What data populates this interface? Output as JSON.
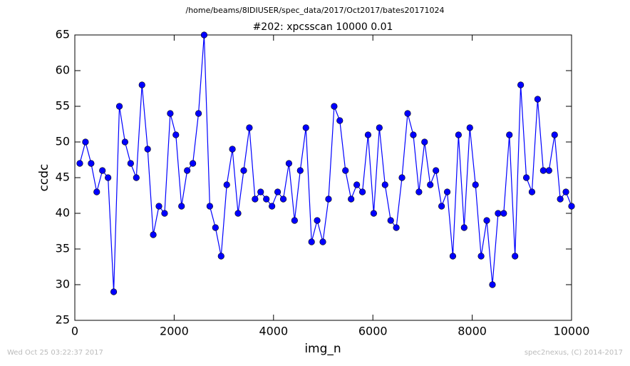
{
  "chart_data": {
    "type": "line",
    "suptitle": "/home/beams/8IDIUSER/spec_data/2017/Oct2017/bates20171024",
    "title": "#202: xpcsscan 10000 0.01",
    "xlabel": "img_n",
    "ylabel": "ccdc",
    "footer_left": "Wed Oct 25 03:22:37 2017",
    "footer_right": "spec2nexus, (C) 2014-2017",
    "xlim": [
      0,
      10000
    ],
    "xticks": [
      0,
      2000,
      4000,
      6000,
      8000,
      10000
    ],
    "ylim": [
      25,
      65
    ],
    "yticks": [
      25,
      30,
      35,
      40,
      45,
      50,
      55,
      60,
      65
    ],
    "x": [
      100,
      214,
      328,
      441,
      555,
      669,
      783,
      897,
      1010,
      1124,
      1238,
      1352,
      1466,
      1579,
      1693,
      1807,
      1921,
      2034,
      2148,
      2262,
      2376,
      2490,
      2603,
      2717,
      2831,
      2945,
      3059,
      3172,
      3286,
      3400,
      3514,
      3628,
      3741,
      3855,
      3969,
      4083,
      4197,
      4310,
      4424,
      4538,
      4652,
      4766,
      4879,
      4993,
      5107,
      5221,
      5334,
      5448,
      5562,
      5676,
      5790,
      5903,
      6017,
      6131,
      6245,
      6359,
      6472,
      6586,
      6700,
      6814,
      6928,
      7041,
      7155,
      7269,
      7383,
      7497,
      7610,
      7724,
      7838,
      7952,
      8066,
      8179,
      8293,
      8407,
      8521,
      8634,
      8748,
      8862,
      8976,
      9090,
      9203,
      9317,
      9431,
      9545,
      9659,
      9772,
      9886,
      10000
    ],
    "series": [
      {
        "color": "#0000ff",
        "values": [
          47,
          50,
          47,
          43,
          46,
          45,
          29,
          55,
          50,
          47,
          45,
          58,
          49,
          37,
          41,
          40,
          54,
          51,
          41,
          46,
          47,
          54,
          65,
          41,
          38,
          34,
          44,
          49,
          40,
          46,
          52,
          42,
          43,
          42,
          41,
          43,
          42,
          47,
          39,
          46,
          52,
          36,
          39,
          36,
          42,
          55,
          53,
          46,
          42,
          44,
          43,
          51,
          40,
          52,
          44,
          39,
          38,
          45,
          54,
          51,
          43,
          50,
          44,
          46,
          41,
          43,
          34,
          51,
          38,
          52,
          44,
          34,
          39,
          30,
          40,
          40,
          51,
          34,
          58,
          45,
          43,
          56,
          46,
          46,
          51,
          42,
          43,
          41
        ]
      }
    ]
  }
}
